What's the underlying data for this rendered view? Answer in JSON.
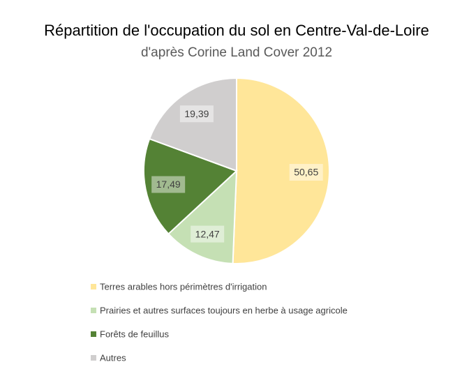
{
  "chart_data": {
    "type": "pie",
    "title": "Répartition de l'occupation du sol en Centre-Val-de-Loire",
    "subtitle": "d'après Corine Land Cover 2012",
    "categories": [
      "Terres arables hors périmètres d'irrigation",
      "Prairies et autres surfaces toujours en herbe à usage agricole",
      "Forêts de feuillus",
      "Autres"
    ],
    "values": [
      50.65,
      12.47,
      17.49,
      19.39
    ],
    "value_labels": [
      "50,65",
      "12,47",
      "17,49",
      "19,39"
    ],
    "colors": [
      "#ffe699",
      "#c5e0b4",
      "#548235",
      "#d0cece"
    ],
    "legend": "bottom"
  }
}
